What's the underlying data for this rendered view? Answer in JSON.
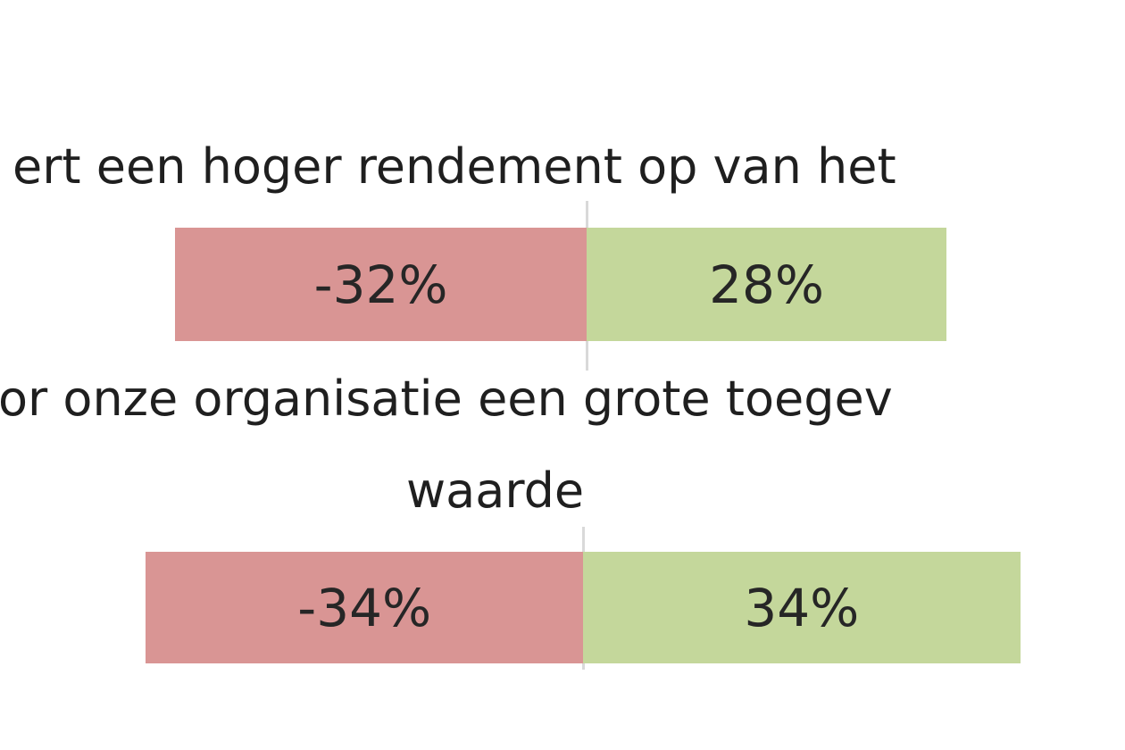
{
  "chart_data": {
    "type": "bar",
    "orientation": "horizontal",
    "stacked": "diverging",
    "categories": [
      "ert een hoger rendement op van het",
      "or onze organisatie een grote toegev waarde"
    ],
    "category_lines": [
      [
        "ert een hoger rendement op van het"
      ],
      [
        "or onze organisatie een grote toegev",
        "waarde"
      ]
    ],
    "series": [
      {
        "values": [
          -32,
          -34
        ],
        "labels": [
          "-32%",
          "-34%"
        ],
        "color": "#d99594"
      },
      {
        "values": [
          28,
          34
        ],
        "labels": [
          "28%",
          "34%"
        ],
        "color": "#c4d79b"
      }
    ],
    "grid": false,
    "legend": "none"
  }
}
